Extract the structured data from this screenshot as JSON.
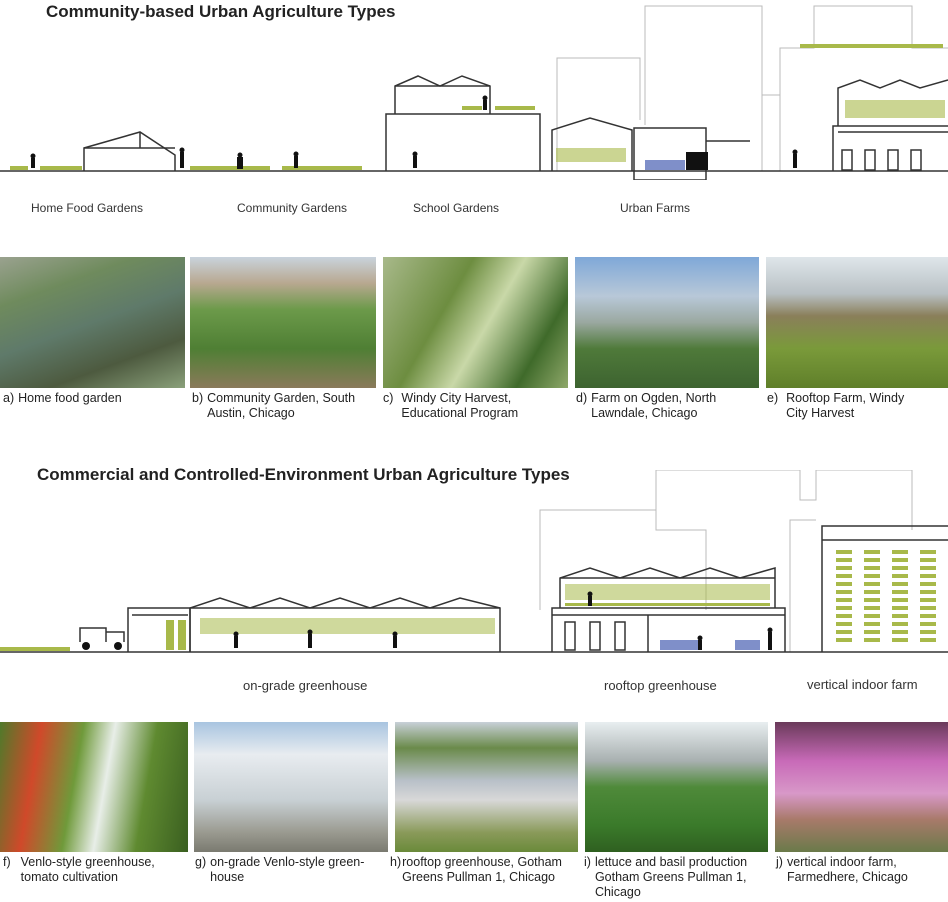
{
  "section1": {
    "title": "Community-based Urban Agriculture Types",
    "labels": [
      "Home Food Gardens",
      "Community Gardens",
      "School Gardens",
      "Urban Farms"
    ],
    "photos": [
      {
        "key": "a)",
        "caption": "Home food garden"
      },
      {
        "key": "b)",
        "caption": "Community Garden, South Austin, Chicago"
      },
      {
        "key": "c)",
        "caption": "Windy City Harvest, Educational Program"
      },
      {
        "key": "d)",
        "caption": "Farm on Ogden, North Lawndale, Chicago"
      },
      {
        "key": "e)",
        "caption": "Rooftop Farm, Windy City Harvest"
      }
    ]
  },
  "section2": {
    "title": "Commercial and Controlled-Environment Urban Agriculture Types",
    "labels": [
      "on-grade greenhouse",
      "rooftop greenhouse",
      "vertical indoor farm"
    ],
    "photos": [
      {
        "key": "f)",
        "caption": "Venlo-style greenhouse, tomato cultivation"
      },
      {
        "key": "g)",
        "caption": "on-grade Venlo-style green- house"
      },
      {
        "key": "h)",
        "caption": "rooftop greenhouse, Gotham Greens Pullman 1, Chicago"
      },
      {
        "key": "i)",
        "caption": "lettuce and basil production Gotham Greens Pullman 1, Chicago"
      },
      {
        "key": "j)",
        "caption": "vertical indoor farm, Farmedhere, Chicago"
      }
    ]
  },
  "colors": {
    "crop": "#a8b94a",
    "line": "#333333",
    "water": "#7f8fc9",
    "ghost": "#bbbbbb"
  }
}
